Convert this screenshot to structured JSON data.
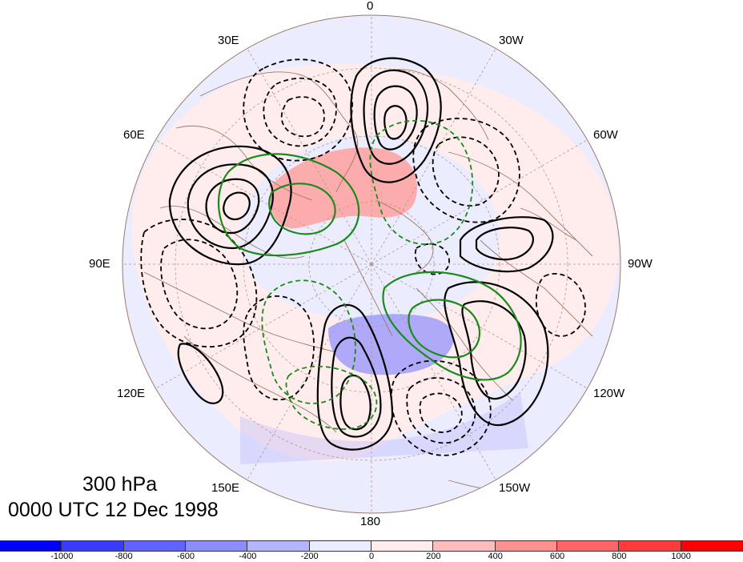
{
  "figure": {
    "level": "300 hPa",
    "valid_time": "0000 UTC 12 Dec 1998"
  },
  "longitude_labels": [
    "0",
    "30W",
    "60W",
    "90W",
    "120W",
    "150W",
    "180",
    "150E",
    "120E",
    "90E",
    "60E",
    "30E"
  ],
  "colorbar": {
    "colors": [
      "#0000ff",
      "#3b3bff",
      "#6262ff",
      "#8d8dff",
      "#b4b4ff",
      "#ececff",
      "#ffecec",
      "#ffbcbc",
      "#ff9090",
      "#ff6565",
      "#ff3a3a",
      "#ff0000"
    ],
    "tick_labels": [
      "-1000",
      "-800",
      "-600",
      "-400",
      "-200",
      "0",
      "200",
      "400",
      "600",
      "800",
      "1000"
    ]
  },
  "map_style": {
    "projection": "north polar stereographic",
    "shading": "filled anomaly field",
    "contours": [
      "solid black",
      "dashed black",
      "solid green",
      "dashed green"
    ],
    "coastline_color": "#9a7a6a",
    "graticule_color": "#b0988a"
  }
}
